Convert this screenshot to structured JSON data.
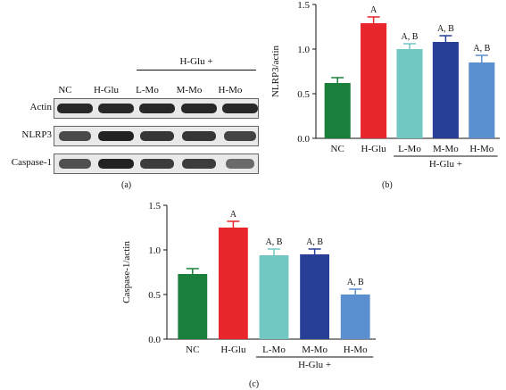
{
  "panel_labels": {
    "a": "(a)",
    "b": "(b)",
    "c": "(c)"
  },
  "blot": {
    "group_label": "H-Glu +",
    "lanes": [
      "NC",
      "H-Glu",
      "L-Mo",
      "M-Mo",
      "H-Mo"
    ],
    "rows": [
      {
        "name": "Actin",
        "intensity": [
          0.95,
          0.95,
          0.95,
          0.95,
          0.95
        ]
      },
      {
        "name": "NLRP3",
        "intensity": [
          0.7,
          1.0,
          0.85,
          0.85,
          0.75
        ]
      },
      {
        "name": "Caspase-1",
        "intensity": [
          0.65,
          1.0,
          0.8,
          0.8,
          0.45
        ]
      }
    ]
  },
  "chart_data": [
    {
      "type": "bar",
      "categories": [
        "NC",
        "H-Glu",
        "L-Mo",
        "M-Mo",
        "H-Mo"
      ],
      "values": [
        0.62,
        1.29,
        1.0,
        1.08,
        0.85
      ],
      "errors": [
        0.06,
        0.07,
        0.06,
        0.07,
        0.08
      ],
      "annotations": [
        "",
        "A",
        "A, B",
        "A, B",
        "A, B"
      ],
      "colors": [
        "#1a7f3a",
        "#e8262b",
        "#72c7c3",
        "#283f98",
        "#5b8fcf"
      ],
      "ylabel": "NLRP3/actin",
      "group_label": "H-Glu +",
      "ylim": [
        0,
        1.5
      ],
      "yticks": [
        "0.0",
        "0.5",
        "1.0",
        "1.5"
      ]
    },
    {
      "type": "bar",
      "categories": [
        "NC",
        "H-Glu",
        "L-Mo",
        "M-Mo",
        "H-Mo"
      ],
      "values": [
        0.73,
        1.25,
        0.94,
        0.95,
        0.5
      ],
      "errors": [
        0.06,
        0.07,
        0.07,
        0.06,
        0.06
      ],
      "annotations": [
        "",
        "A",
        "A, B",
        "A, B",
        "A, B"
      ],
      "colors": [
        "#1a7f3a",
        "#e8262b",
        "#72c7c3",
        "#283f98",
        "#5b8fcf"
      ],
      "ylabel": "Caspase-1/actin",
      "group_label": "H-Glu +",
      "ylim": [
        0,
        1.5
      ],
      "yticks": [
        "0.0",
        "0.5",
        "1.0",
        "1.5"
      ]
    }
  ]
}
